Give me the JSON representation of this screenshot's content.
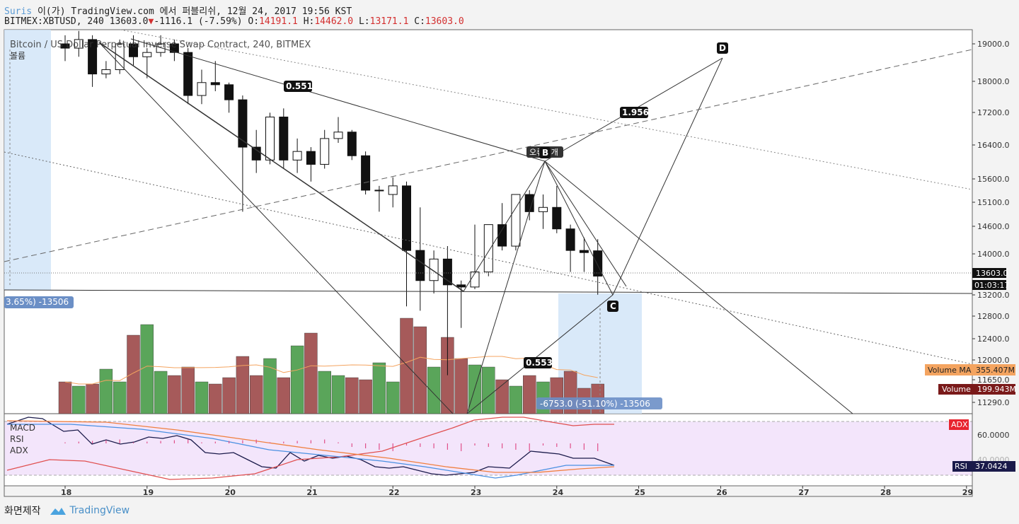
{
  "header": {
    "user": "Suris",
    "publish_line": "이(가) TradingView.com 에서 퍼블리쉬, 12월 24, 2017 19:56 KST",
    "symbol": "BITMEX:XBTUSD, 240",
    "last": "13603.0",
    "change": "-1116.1 (-7.59%)",
    "o_label": "O:",
    "o": "14191.1",
    "h_label": "H:",
    "h": "14462.0",
    "l_label": "L:",
    "l": "13171.1",
    "c_label": "C:",
    "c": "13603.0"
  },
  "legend": {
    "instrument": "Bitcoin / US Dollar Perpetual Inverse Swap Contract, 240, BITMEX",
    "volume_label": "볼륨"
  },
  "price_axis": {
    "ticks": [
      "19000.0",
      "18000.0",
      "17200.0",
      "16400.0",
      "15600.0",
      "15100.0",
      "14600.0",
      "14000.0",
      "13200.0",
      "12800.0",
      "12400.0",
      "12000.0",
      "11650.0",
      "11290.0"
    ],
    "last_price_tag": "13603.0",
    "countdown_tag": "01:03:17",
    "volume_ma_label": "Volume MA",
    "volume_ma_value": "355.407M",
    "volume_label": "Volume",
    "volume_value": "199.943M"
  },
  "indicator_axis": {
    "tick": "60.0000",
    "tick2": "40.0000",
    "adx_label": "ADX",
    "rsi_label": "RSI",
    "rsi_value": "37.0424"
  },
  "indicator_legend": [
    "MACD",
    "RSI",
    "ADX"
  ],
  "time_axis": [
    "18",
    "19",
    "20",
    "21",
    "22",
    "23",
    "24",
    "25",
    "26",
    "27",
    "28",
    "29"
  ],
  "pattern": {
    "points": [
      "B",
      "C",
      "D"
    ],
    "ratios": [
      "0.551",
      "1.956",
      "0.553"
    ],
    "b_note": "오류 1개"
  },
  "measure": {
    "left": "3.65%) -13506",
    "bottom": "-6753.0 (-51.10%) -13506"
  },
  "footer": {
    "snapshot": "화면제작",
    "brand": "TradingView"
  },
  "colors": {
    "up_volume": "#5aa55a",
    "down_volume": "#a65a5a",
    "indicator_bg": "#f3e5fb",
    "measure_bg": "#cfe3f8",
    "accent_blue": "#6b8fc6"
  },
  "chart_data": {
    "type": "candlestick",
    "x_axis": "date (Dec 2017)",
    "candles": [
      {
        "o": 19000,
        "h": 19200,
        "l": 18600,
        "c": 18900
      },
      {
        "o": 18900,
        "h": 19300,
        "l": 18700,
        "c": 19100
      },
      {
        "o": 19100,
        "h": 19200,
        "l": 18000,
        "c": 18300
      },
      {
        "o": 18300,
        "h": 18600,
        "l": 18200,
        "c": 18400
      },
      {
        "o": 18400,
        "h": 19100,
        "l": 18300,
        "c": 19000
      },
      {
        "o": 19000,
        "h": 19200,
        "l": 18500,
        "c": 18700
      },
      {
        "o": 18700,
        "h": 18900,
        "l": 18200,
        "c": 18800
      },
      {
        "o": 18800,
        "h": 19200,
        "l": 18700,
        "c": 19000
      },
      {
        "o": 19000,
        "h": 19100,
        "l": 18600,
        "c": 18800
      },
      {
        "o": 18800,
        "h": 18900,
        "l": 17600,
        "c": 17800
      },
      {
        "o": 17800,
        "h": 18400,
        "l": 17600,
        "c": 18100
      },
      {
        "o": 18100,
        "h": 18600,
        "l": 17900,
        "c": 18050
      },
      {
        "o": 18050,
        "h": 18100,
        "l": 17400,
        "c": 17700
      },
      {
        "o": 17700,
        "h": 17800,
        "l": 15100,
        "c": 16600
      },
      {
        "o": 16600,
        "h": 17000,
        "l": 16000,
        "c": 16300
      },
      {
        "o": 16300,
        "h": 17400,
        "l": 16200,
        "c": 17300
      },
      {
        "o": 17300,
        "h": 17500,
        "l": 16100,
        "c": 16300
      },
      {
        "o": 16300,
        "h": 16800,
        "l": 16000,
        "c": 16500
      },
      {
        "o": 16500,
        "h": 16600,
        "l": 15800,
        "c": 16200
      },
      {
        "o": 16200,
        "h": 17000,
        "l": 16100,
        "c": 16800
      },
      {
        "o": 16800,
        "h": 17300,
        "l": 16700,
        "c": 16950
      },
      {
        "o": 16950,
        "h": 17000,
        "l": 16300,
        "c": 16400
      },
      {
        "o": 16400,
        "h": 16500,
        "l": 15500,
        "c": 15600
      },
      {
        "o": 15600,
        "h": 15700,
        "l": 15100,
        "c": 15600
      },
      {
        "o": 15500,
        "h": 15900,
        "l": 15200,
        "c": 15700
      },
      {
        "o": 15700,
        "h": 15800,
        "l": 12900,
        "c": 14200
      },
      {
        "o": 14200,
        "h": 15200,
        "l": 12800,
        "c": 13500
      },
      {
        "o": 13500,
        "h": 14200,
        "l": 13200,
        "c": 14000
      },
      {
        "o": 14000,
        "h": 14300,
        "l": 11300,
        "c": 13400
      },
      {
        "o": 13400,
        "h": 13500,
        "l": 12400,
        "c": 13350
      },
      {
        "o": 13350,
        "h": 14800,
        "l": 13300,
        "c": 13700
      },
      {
        "o": 13700,
        "h": 14800,
        "l": 13600,
        "c": 14800
      },
      {
        "o": 14800,
        "h": 15300,
        "l": 14200,
        "c": 14300
      },
      {
        "o": 14300,
        "h": 15500,
        "l": 14200,
        "c": 15500
      },
      {
        "o": 15500,
        "h": 15600,
        "l": 14900,
        "c": 15100
      },
      {
        "o": 15100,
        "h": 15500,
        "l": 14700,
        "c": 15200
      },
      {
        "o": 15200,
        "h": 15700,
        "l": 14600,
        "c": 14700
      },
      {
        "o": 14700,
        "h": 14800,
        "l": 13700,
        "c": 14200
      },
      {
        "o": 14200,
        "h": 14500,
        "l": 13700,
        "c": 14150
      },
      {
        "o": 14191.1,
        "h": 14462,
        "l": 13171.1,
        "c": 13603
      }
    ],
    "volume": [
      150,
      130,
      140,
      210,
      150,
      370,
      420,
      200,
      180,
      220,
      150,
      140,
      170,
      270,
      180,
      260,
      170,
      320,
      380,
      200,
      180,
      170,
      160,
      240,
      150,
      450,
      410,
      220,
      360,
      260,
      230,
      220,
      160,
      130,
      180,
      150,
      170,
      200,
      120,
      140
    ],
    "ylim": [
      11100,
      19500
    ]
  }
}
